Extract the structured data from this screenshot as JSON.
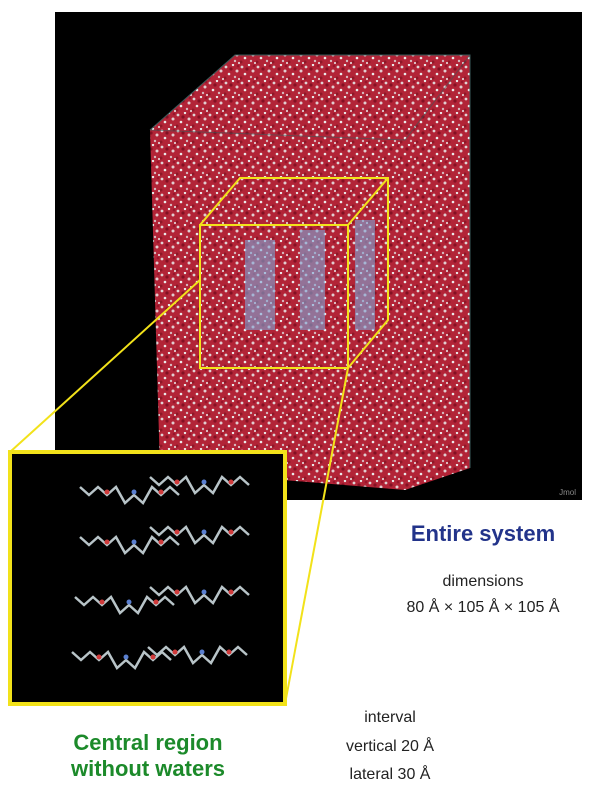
{
  "figure": {
    "viewer_label": "Jmol",
    "entire": {
      "title": "Entire system",
      "dimensions_label": "dimensions",
      "dimensions": "80 Å × 105 Å × 105 Å"
    },
    "central": {
      "title_line1": "Central region",
      "title_line2": "without waters"
    },
    "interval": {
      "label": "interval",
      "vertical": "vertical 20 Å",
      "lateral": "lateral 30 Å"
    }
  }
}
